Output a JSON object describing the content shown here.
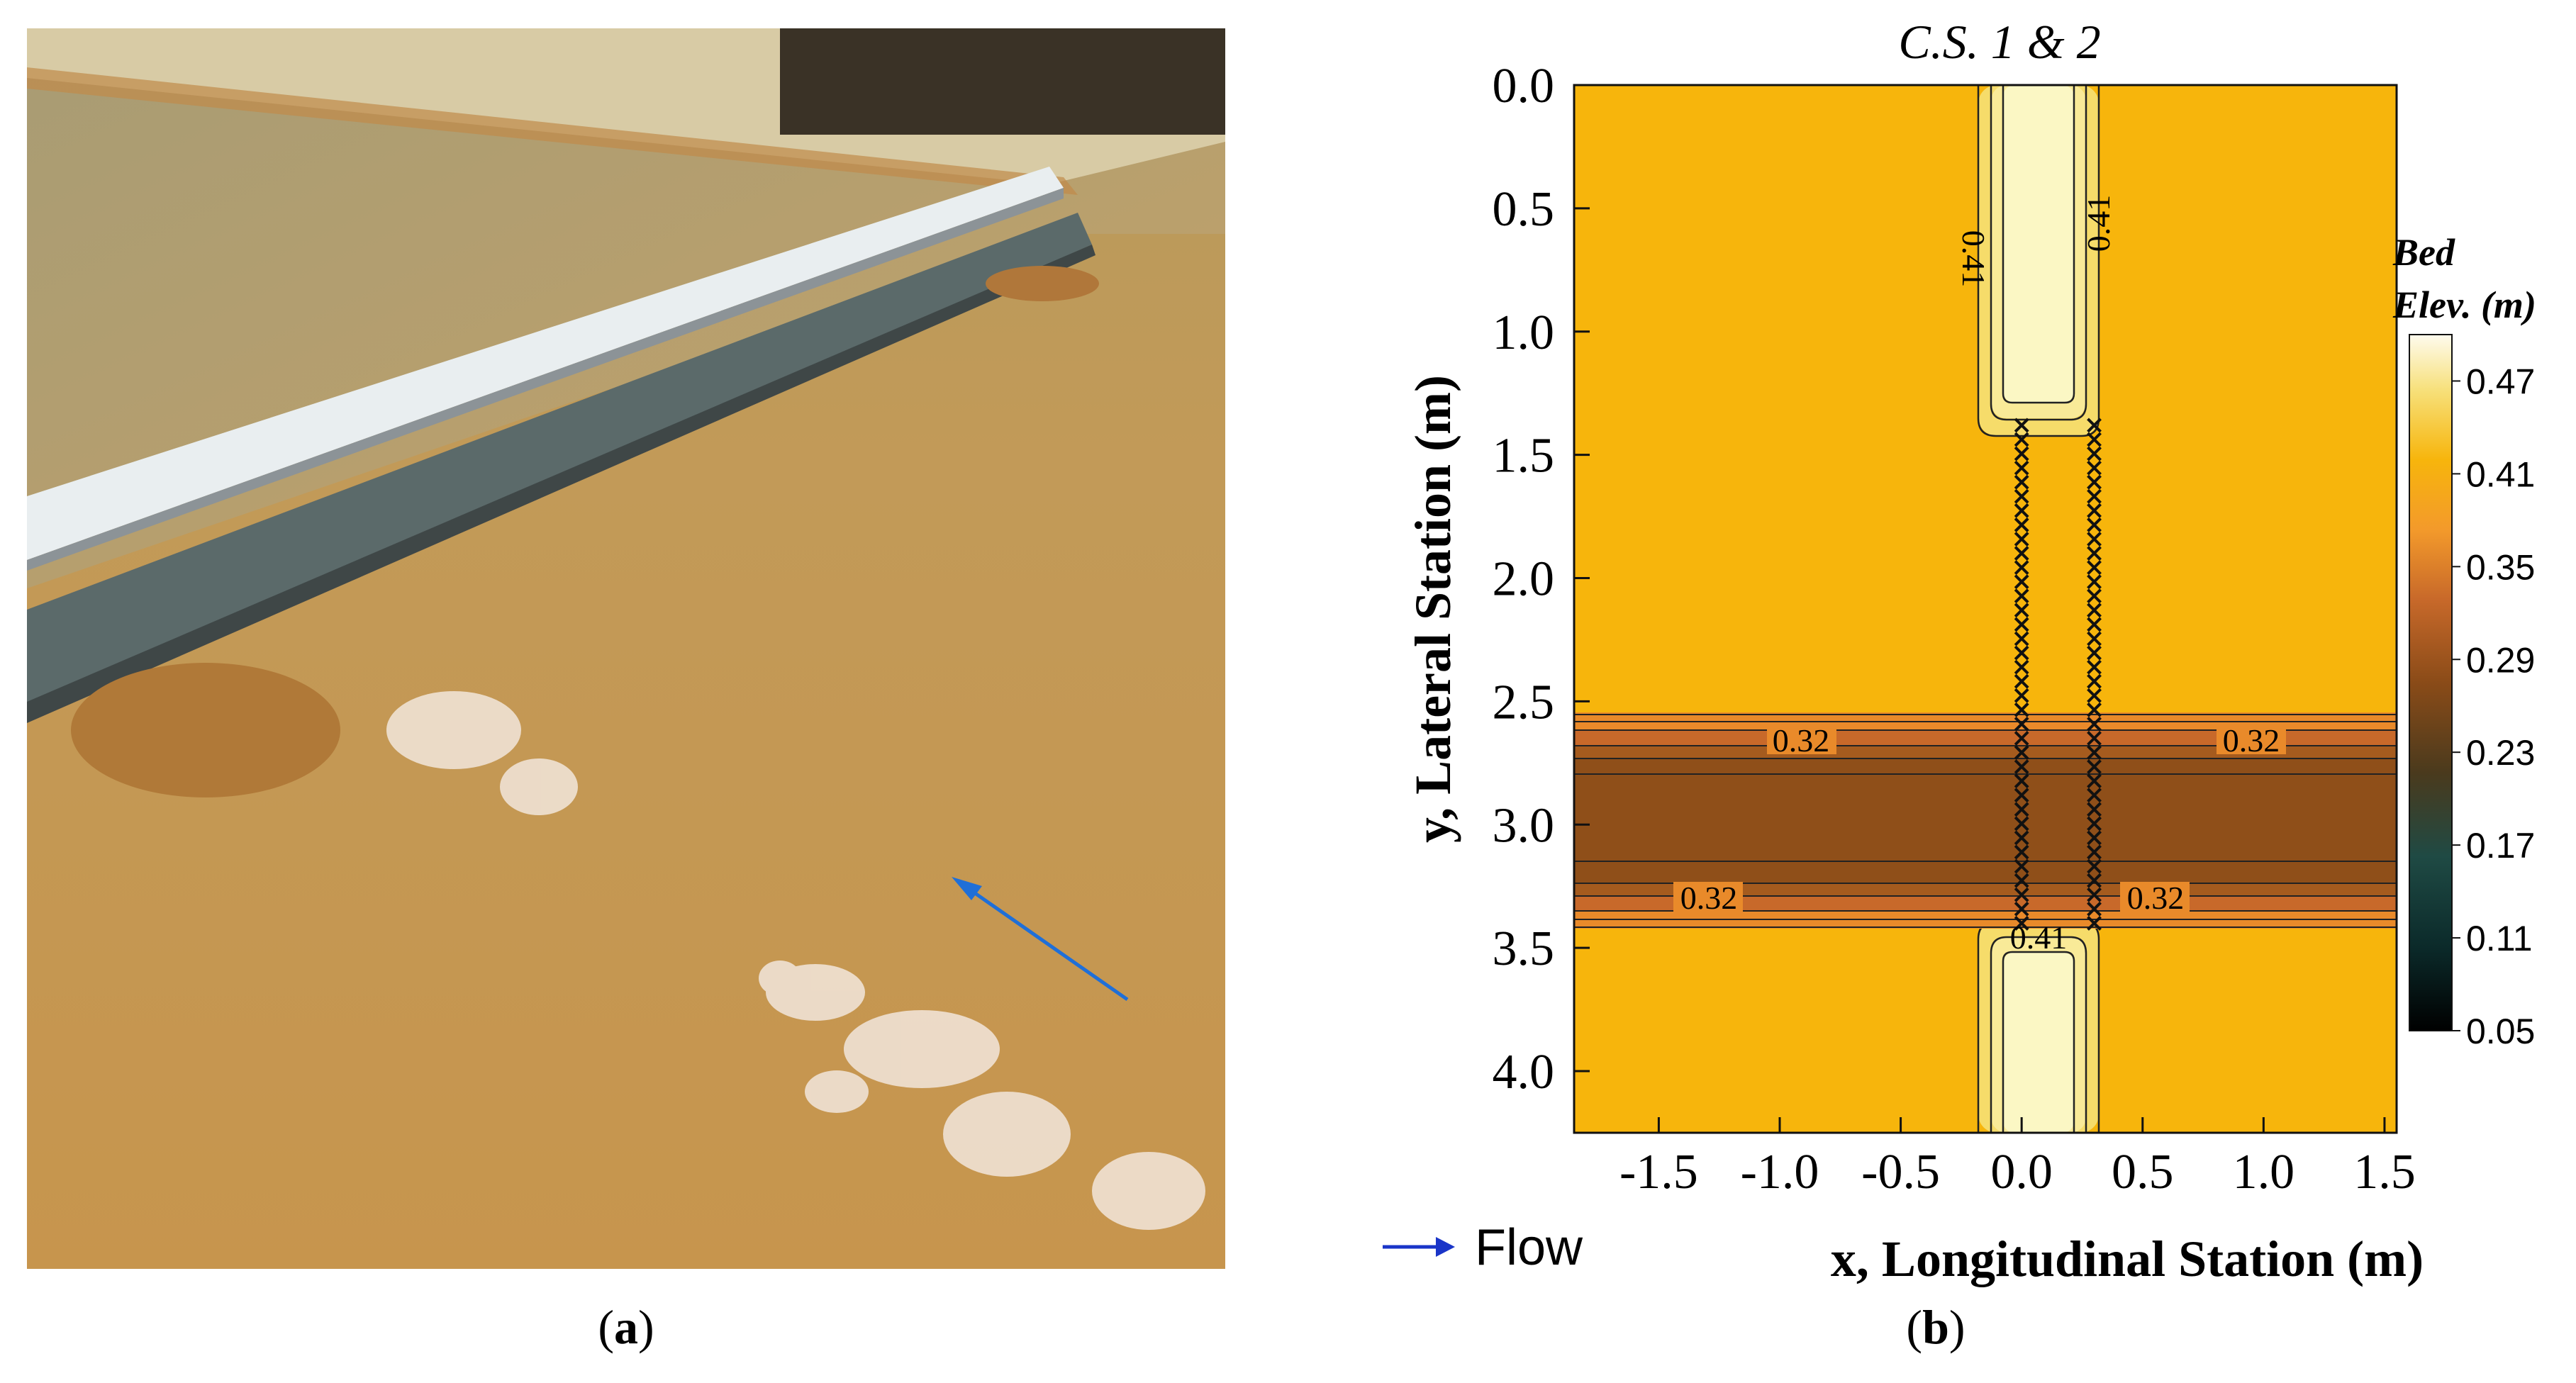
{
  "panel_a": {
    "label_open": "(",
    "label_letter": "a",
    "label_close": ")",
    "photo_subject": "flume with sand bed, water flowing past a submerged weir, blue arrow showing flow direction"
  },
  "panel_b": {
    "label_open": "(",
    "label_letter": "b",
    "label_close": ")",
    "flow_legend_label": "Flow",
    "colorbar_title_line1": "Bed",
    "colorbar_title_line2": "Elev. (m)",
    "colorbar_ticks": [
      "0.47",
      "0.41",
      "0.35",
      "0.29",
      "0.23",
      "0.17",
      "0.11",
      "0.05"
    ],
    "contour_labels": [
      "0.41",
      "0.41",
      "0.32",
      "0.32",
      "0.32",
      "0.32",
      "0.41"
    ]
  },
  "colors": {
    "flow_arrow": "#1a35c8",
    "plateau": "#f7b50c",
    "trough": "#8f4f19",
    "crest": "#fbf7c4"
  },
  "chart_data": {
    "type": "heatmap",
    "title": "C.S. 1 & 2",
    "xlabel": "x, Longitudinal Station (m)",
    "ylabel": "y, Lateral Station (m)",
    "xlim": [
      -1.85,
      1.55
    ],
    "ylim": [
      4.25,
      0.0
    ],
    "xticks": [
      "-1.5",
      "-1.0",
      "-0.5",
      "0.0",
      "0.5",
      "1.0",
      "1.5"
    ],
    "yticks": [
      "0.0",
      "0.5",
      "1.0",
      "1.5",
      "2.0",
      "2.5",
      "3.0",
      "3.5",
      "4.0"
    ],
    "colorbar_range": [
      0.05,
      0.5
    ],
    "regions": [
      {
        "name": "background bed",
        "elevation": 0.41
      },
      {
        "name": "crest strip (y 0.0-1.25, y 3.55-4.25)",
        "x_range": [
          -0.15,
          0.35
        ],
        "elevation": 0.5
      },
      {
        "name": "scour trough",
        "y_range": [
          2.6,
          3.4
        ],
        "elevation": 0.26
      }
    ],
    "marker_columns": {
      "x": [
        0.0,
        0.3
      ],
      "y_range": [
        1.38,
        3.4
      ],
      "marker": "x"
    }
  }
}
